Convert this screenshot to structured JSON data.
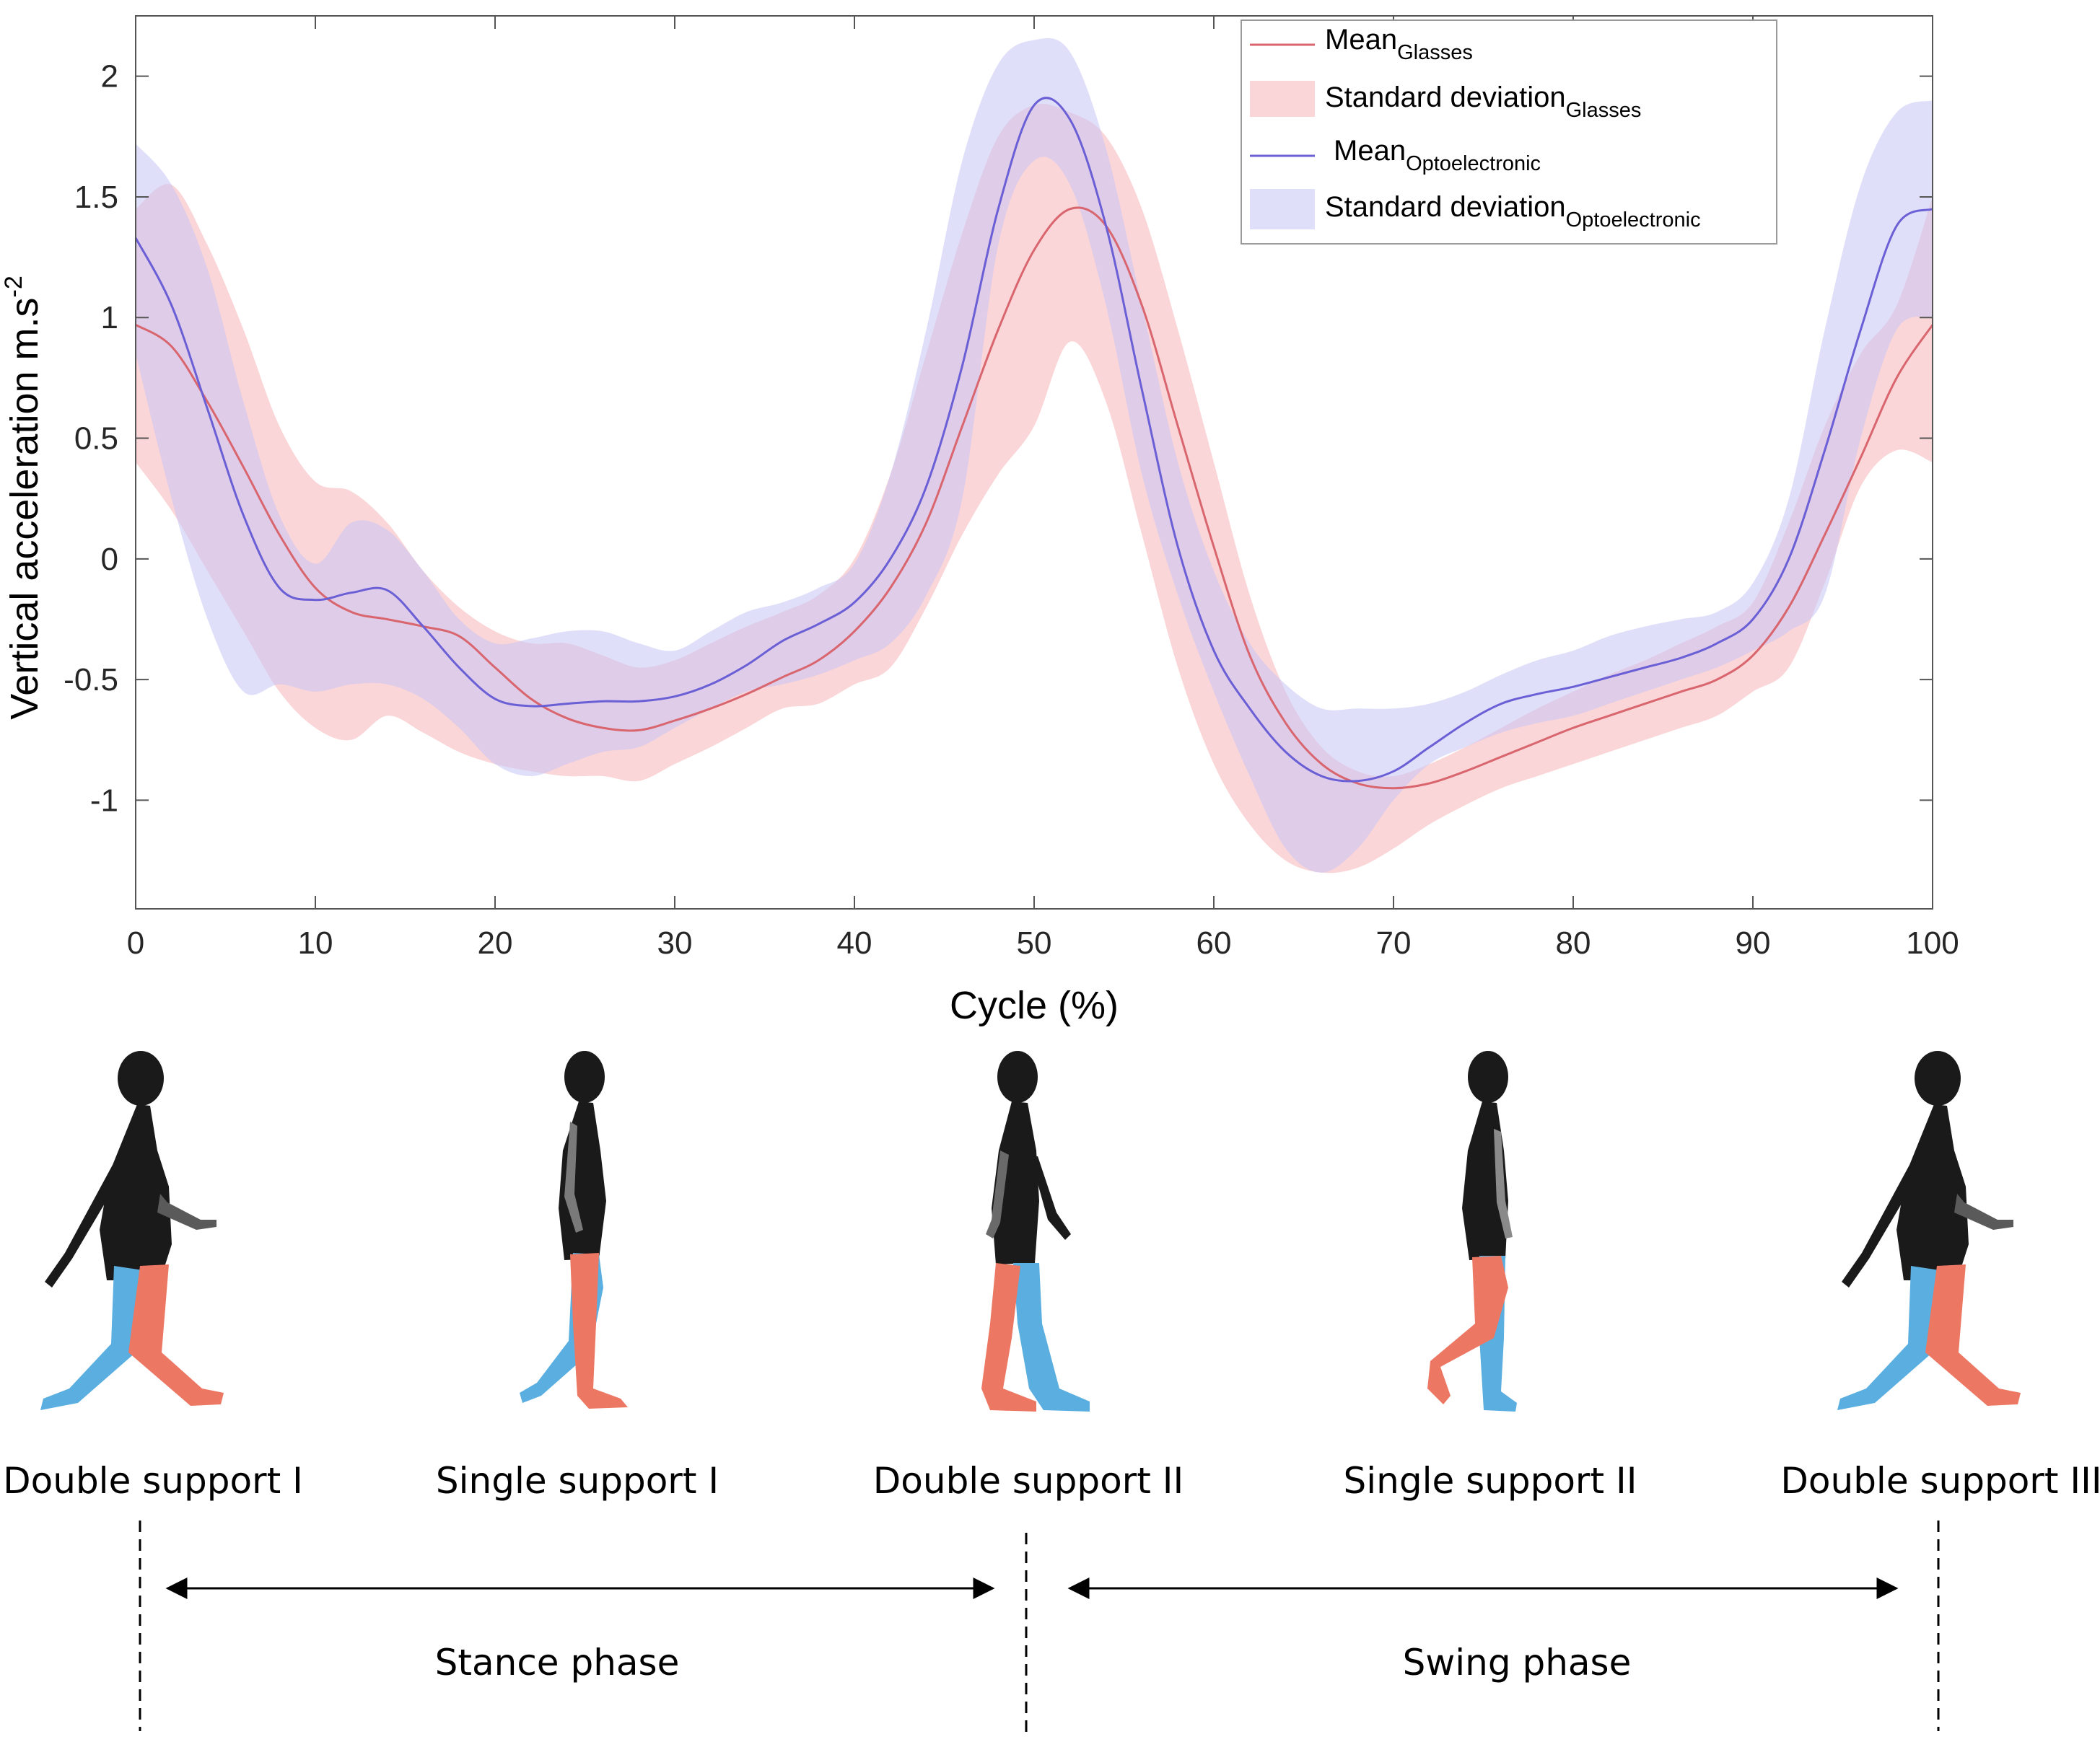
{
  "chart_data": {
    "type": "line",
    "xlabel": "Cycle (%)",
    "ylabel_base": "Vertical acceleration m.s",
    "ylabel_exponent": "-2",
    "xlim": [
      0,
      100
    ],
    "ylim": [
      -1.45,
      2.25
    ],
    "xticks": [
      0,
      10,
      20,
      30,
      40,
      50,
      60,
      70,
      80,
      90,
      100
    ],
    "xtick_labels": [
      "0",
      "10",
      "20",
      "30",
      "40",
      "50",
      "60",
      "70",
      "80",
      "90",
      "100"
    ],
    "yticks": [
      -1,
      -0.5,
      0,
      0.5,
      1,
      1.5,
      2
    ],
    "ytick_labels": [
      "-1",
      "-0.5",
      "0",
      "0.5",
      "1",
      "1.5",
      "2"
    ],
    "grid": false,
    "legend_position": "top-right",
    "x": [
      0,
      2,
      4,
      6,
      8,
      10,
      12,
      14,
      16,
      18,
      20,
      22,
      24,
      26,
      28,
      30,
      32,
      34,
      36,
      38,
      40,
      42,
      44,
      46,
      48,
      50,
      52,
      54,
      56,
      58,
      60,
      62,
      64,
      66,
      68,
      70,
      72,
      74,
      76,
      78,
      80,
      82,
      84,
      86,
      88,
      90,
      92,
      94,
      96,
      98,
      100
    ],
    "series": [
      {
        "name": "Standard deviation",
        "name_subscript": "Glasses",
        "kind": "band",
        "color": "#f6b5b8",
        "opacity": 0.55,
        "upper": [
          1.45,
          1.55,
          1.3,
          0.95,
          0.55,
          0.32,
          0.28,
          0.15,
          -0.05,
          -0.2,
          -0.3,
          -0.35,
          -0.35,
          -0.4,
          -0.45,
          -0.42,
          -0.35,
          -0.28,
          -0.22,
          -0.15,
          0.0,
          0.35,
          0.85,
          1.35,
          1.75,
          1.88,
          1.85,
          1.75,
          1.45,
          0.95,
          0.4,
          -0.15,
          -0.55,
          -0.78,
          -0.88,
          -0.9,
          -0.85,
          -0.78,
          -0.7,
          -0.62,
          -0.55,
          -0.48,
          -0.42,
          -0.35,
          -0.28,
          -0.18,
          0.15,
          0.55,
          0.85,
          1.05,
          1.5
        ],
        "lower": [
          0.4,
          0.2,
          -0.05,
          -0.3,
          -0.55,
          -0.7,
          -0.75,
          -0.65,
          -0.72,
          -0.8,
          -0.85,
          -0.88,
          -0.9,
          -0.9,
          -0.92,
          -0.85,
          -0.78,
          -0.7,
          -0.62,
          -0.6,
          -0.52,
          -0.45,
          -0.2,
          0.1,
          0.35,
          0.55,
          0.9,
          0.65,
          0.1,
          -0.45,
          -0.85,
          -1.1,
          -1.25,
          -1.3,
          -1.28,
          -1.2,
          -1.1,
          -1.02,
          -0.95,
          -0.9,
          -0.85,
          -0.8,
          -0.75,
          -0.7,
          -0.65,
          -0.55,
          -0.45,
          -0.1,
          0.3,
          0.45,
          0.4
        ]
      },
      {
        "name": "Standard deviation",
        "name_subscript": "Optoelectronic",
        "kind": "band",
        "color": "#c7c5f5",
        "opacity": 0.55,
        "upper": [
          1.72,
          1.55,
          1.2,
          0.65,
          0.18,
          -0.02,
          0.15,
          0.12,
          -0.05,
          -0.25,
          -0.35,
          -0.33,
          -0.3,
          -0.3,
          -0.35,
          -0.38,
          -0.3,
          -0.22,
          -0.18,
          -0.12,
          -0.02,
          0.35,
          0.95,
          1.65,
          2.05,
          2.15,
          2.1,
          1.7,
          1.05,
          0.4,
          -0.05,
          -0.35,
          -0.52,
          -0.62,
          -0.62,
          -0.62,
          -0.6,
          -0.55,
          -0.48,
          -0.42,
          -0.38,
          -0.32,
          -0.28,
          -0.25,
          -0.22,
          -0.1,
          0.25,
          0.95,
          1.55,
          1.85,
          1.9
        ],
        "lower": [
          0.85,
          0.25,
          -0.25,
          -0.55,
          -0.52,
          -0.55,
          -0.52,
          -0.52,
          -0.58,
          -0.7,
          -0.85,
          -0.9,
          -0.85,
          -0.8,
          -0.78,
          -0.7,
          -0.62,
          -0.55,
          -0.52,
          -0.48,
          -0.42,
          -0.35,
          -0.15,
          0.25,
          1.3,
          1.65,
          1.55,
          1.05,
          0.35,
          -0.15,
          -0.55,
          -0.9,
          -1.2,
          -1.3,
          -1.2,
          -1.0,
          -0.85,
          -0.78,
          -0.72,
          -0.68,
          -0.65,
          -0.6,
          -0.55,
          -0.5,
          -0.45,
          -0.38,
          -0.3,
          -0.15,
          0.5,
          0.95,
          1.0
        ]
      },
      {
        "name": "Mean",
        "name_subscript": "Glasses",
        "kind": "line",
        "color": "#d9666e",
        "values": [
          0.97,
          0.88,
          0.65,
          0.38,
          0.1,
          -0.12,
          -0.22,
          -0.25,
          -0.28,
          -0.32,
          -0.45,
          -0.58,
          -0.66,
          -0.7,
          -0.71,
          -0.67,
          -0.62,
          -0.56,
          -0.49,
          -0.42,
          -0.3,
          -0.12,
          0.15,
          0.55,
          0.95,
          1.28,
          1.45,
          1.38,
          1.05,
          0.55,
          0.05,
          -0.4,
          -0.68,
          -0.85,
          -0.93,
          -0.95,
          -0.93,
          -0.88,
          -0.82,
          -0.76,
          -0.7,
          -0.65,
          -0.6,
          -0.55,
          -0.5,
          -0.4,
          -0.2,
          0.1,
          0.42,
          0.75,
          0.97
        ]
      },
      {
        "name": "Mean",
        "name_subscript": "Optoelectronic",
        "kind": "line",
        "color": "#6b5fd6",
        "values": [
          1.33,
          1.05,
          0.62,
          0.18,
          -0.12,
          -0.17,
          -0.14,
          -0.13,
          -0.28,
          -0.45,
          -0.58,
          -0.61,
          -0.6,
          -0.59,
          -0.59,
          -0.57,
          -0.52,
          -0.44,
          -0.34,
          -0.27,
          -0.18,
          0.0,
          0.3,
          0.8,
          1.45,
          1.88,
          1.82,
          1.38,
          0.7,
          0.05,
          -0.38,
          -0.62,
          -0.8,
          -0.9,
          -0.92,
          -0.88,
          -0.78,
          -0.68,
          -0.6,
          -0.56,
          -0.53,
          -0.49,
          -0.45,
          -0.41,
          -0.35,
          -0.25,
          0.0,
          0.45,
          0.95,
          1.38,
          1.45
        ]
      }
    ]
  },
  "gait_phases": {
    "events": [
      {
        "label": "Double support I",
        "cycle": 0
      },
      {
        "label": "Single support I",
        "cycle": null
      },
      {
        "label": "Double support II",
        "cycle": 50
      },
      {
        "label": "Single support II",
        "cycle": null
      },
      {
        "label": "Double support III",
        "cycle": 100
      }
    ],
    "stance_label": "Stance phase",
    "swing_label": "Swing phase",
    "colors": {
      "body": "#1a1a1a",
      "leg_a": "#ec7763",
      "leg_b": "#5aaee0"
    }
  }
}
